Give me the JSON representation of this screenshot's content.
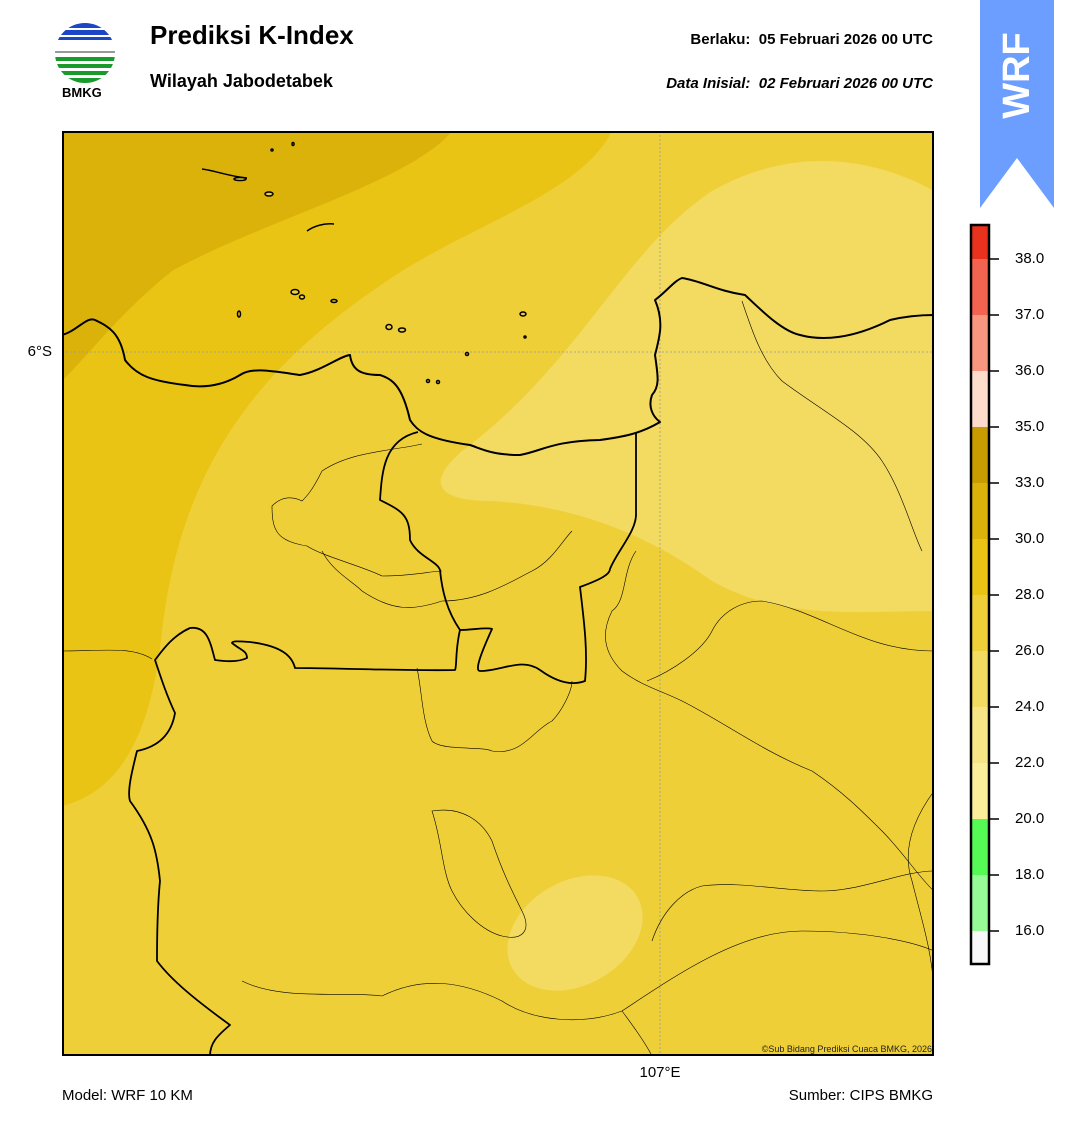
{
  "header": {
    "logo_text": "BMKG",
    "title": "Prediksi K-Index",
    "subtitle": "Wilayah Jabodetabek",
    "valid": "Berlaku:  05 Februari 2026 00 UTC",
    "initial": "Data Inisial:  02 Februari 2026 00 UTC",
    "model_badge": "WRF",
    "badge_color": "#6b9eff"
  },
  "map": {
    "lat_label": "6°S",
    "lon_label": "107°E",
    "credit": "©Sub Bidang Prediksi Cuaca BMKG, 2026",
    "field_colors": {
      "c30_33": "#dbb20a",
      "c28_30": "#e9c414",
      "c26_28": "#efcf38",
      "c24_26": "#f3da60"
    }
  },
  "colorbar": {
    "ticks": [
      "38.0",
      "37.0",
      "36.0",
      "35.0",
      "33.0",
      "30.0",
      "28.0",
      "26.0",
      "24.0",
      "22.0",
      "20.0",
      "18.0",
      "16.0"
    ],
    "colors": [
      "#e8321e",
      "#f26450",
      "#f8967f",
      "#fddccb",
      "#c89b00",
      "#dbb20a",
      "#e9c414",
      "#efcf38",
      "#f3da60",
      "#f7e484",
      "#fbee9a",
      "#55fa55",
      "#96fa96",
      "#f8f8f8"
    ]
  },
  "footer": {
    "model": "Model: WRF 10 KM",
    "source": "Sumber: CIPS BMKG"
  }
}
